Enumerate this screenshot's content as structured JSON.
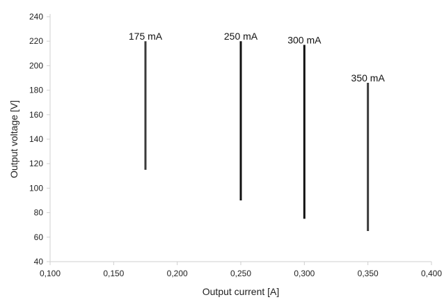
{
  "chart_data": {
    "type": "range-bar",
    "xlabel": "Output current [A]",
    "ylabel": "Output voltage [V]",
    "xlim": [
      0.1,
      0.4
    ],
    "ylim": [
      40,
      240
    ],
    "xticks": [
      0.1,
      0.15,
      0.2,
      0.25,
      0.3,
      0.35,
      0.4
    ],
    "xtick_labels": [
      "0,100",
      "0,150",
      "0,200",
      "0,250",
      "0,300",
      "0,350",
      "0,400"
    ],
    "yticks": [
      40,
      60,
      80,
      100,
      120,
      140,
      160,
      180,
      200,
      220,
      240
    ],
    "yticks_labels": [
      "40",
      "60",
      "80",
      "100",
      "120",
      "140",
      "160",
      "180",
      "200",
      "220",
      "240"
    ],
    "grid": false,
    "legend": "none",
    "series": [
      {
        "label": "175 mA",
        "x": 0.175,
        "y_min": 115,
        "y_max": 220,
        "color": "#3a3a3a"
      },
      {
        "label": "250 mA",
        "x": 0.25,
        "y_min": 90,
        "y_max": 220,
        "color": "#111111"
      },
      {
        "label": "300 mA",
        "x": 0.3,
        "y_min": 75,
        "y_max": 217,
        "color": "#111111"
      },
      {
        "label": "350 mA",
        "x": 0.35,
        "y_min": 65,
        "y_max": 186,
        "color": "#3a3a3a"
      }
    ]
  }
}
